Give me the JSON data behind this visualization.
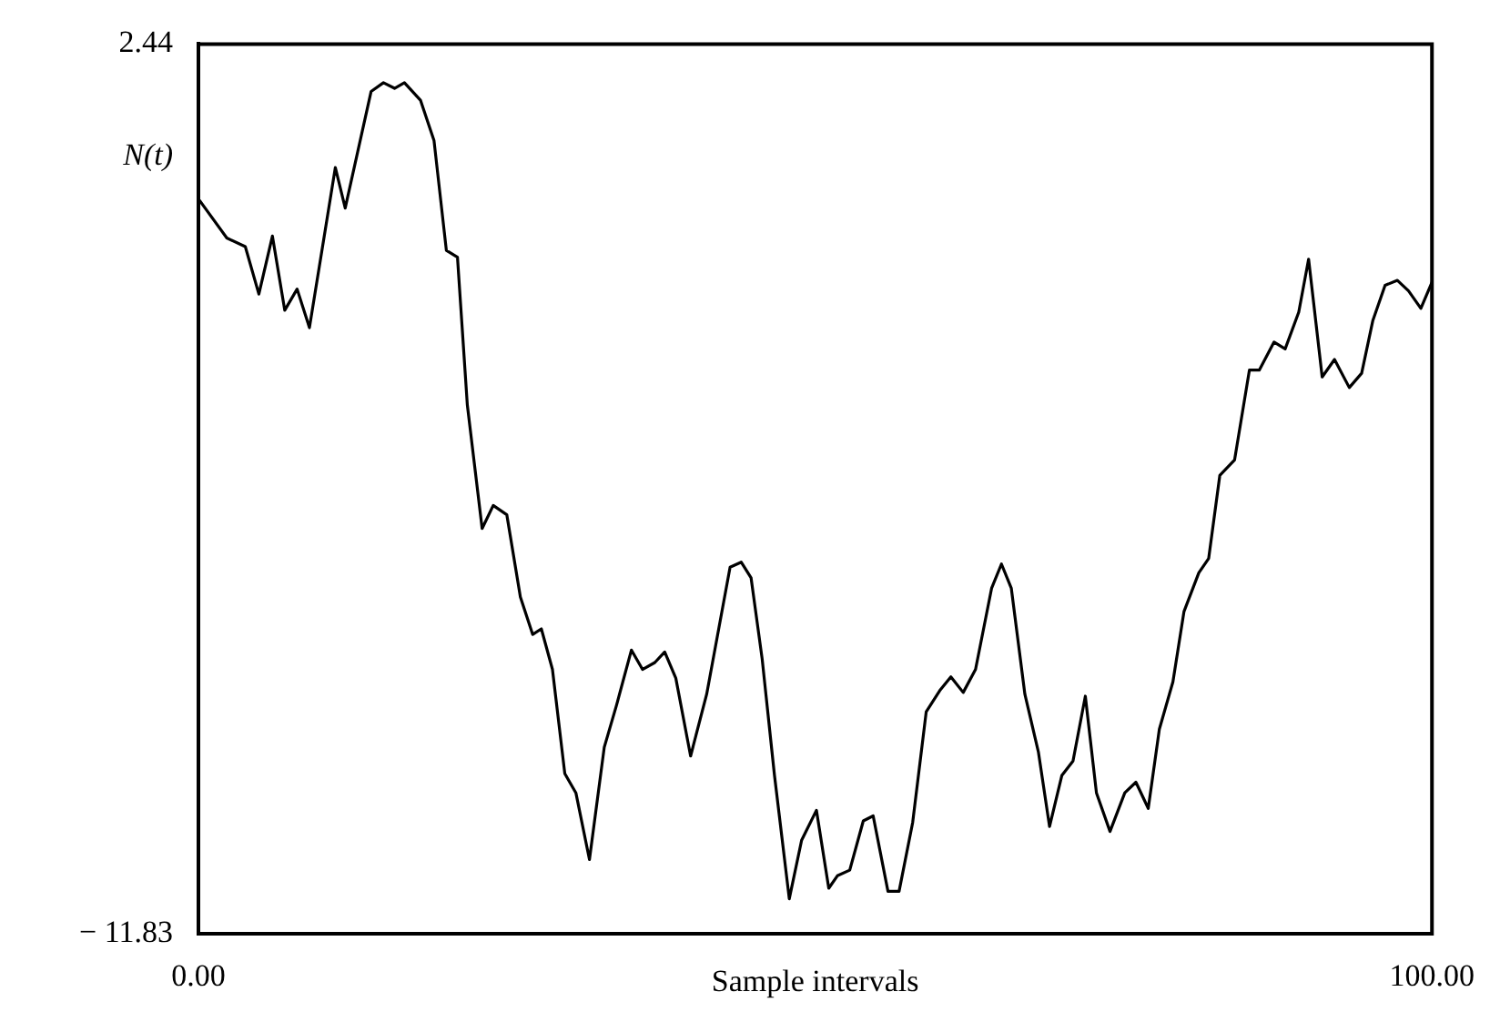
{
  "chart_data": {
    "type": "line",
    "xlabel": "Sample intervals",
    "ylabel": "N(t)",
    "legend": false,
    "marker": "none",
    "line_style": "solid",
    "xlim": [
      0,
      100
    ],
    "xticks": [
      {
        "value": 0,
        "label": "0.00"
      },
      {
        "value": 100,
        "label": "100.00"
      }
    ],
    "ylim": [
      -11.83,
      2.44
    ],
    "yticks": [
      {
        "value": -11.83,
        "label": "− 11.83"
      },
      2.44
    ],
    "series": [
      {
        "color": "#000000",
        "x": [
          0.1,
          2.3,
          3.8,
          4.9,
          6.0,
          7.0,
          8.0,
          9.0,
          11.1,
          11.9,
          14.0,
          15.0,
          15.9,
          16.7,
          18.0,
          19.1,
          20.1,
          21.0,
          21.8,
          23.0,
          23.9,
          25.0,
          26.1,
          27.1,
          27.8,
          28.7,
          29.7,
          30.6,
          31.7,
          32.9,
          33.9,
          35.1,
          36.0,
          37.0,
          37.8,
          38.7,
          39.9,
          41.2,
          43.1,
          44.0,
          44.8,
          45.7,
          46.7,
          47.9,
          48.9,
          50.1,
          51.1,
          51.8,
          52.8,
          53.9,
          54.7,
          55.9,
          56.8,
          57.9,
          59.0,
          60.1,
          61.0,
          62.0,
          63.0,
          64.3,
          65.1,
          65.9,
          67.0,
          68.1,
          69.0,
          70.0,
          70.9,
          71.9,
          72.8,
          73.9,
          75.1,
          76.0,
          77.0,
          77.9,
          79.0,
          79.9,
          81.1,
          81.9,
          82.8,
          84.0,
          85.2,
          86.0,
          87.2,
          88.1,
          89.2,
          90.0,
          91.1,
          92.1,
          93.3,
          94.3,
          95.2,
          96.2,
          97.2,
          98.1,
          99.1,
          100
        ],
        "values": [
          -0.07,
          -0.67,
          -0.81,
          -1.57,
          -0.64,
          -1.83,
          -1.49,
          -2.11,
          0.46,
          -0.19,
          1.68,
          1.82,
          1.73,
          1.82,
          1.54,
          0.89,
          -0.87,
          -0.98,
          -3.35,
          -5.33,
          -4.96,
          -5.11,
          -6.43,
          -7.03,
          -6.94,
          -7.59,
          -9.26,
          -9.57,
          -10.64,
          -8.84,
          -8.16,
          -7.28,
          -7.59,
          -7.48,
          -7.31,
          -7.73,
          -8.98,
          -7.99,
          -5.95,
          -5.87,
          -6.12,
          -7.42,
          -9.29,
          -11.27,
          -10.33,
          -9.85,
          -11.1,
          -10.9,
          -10.81,
          -10.02,
          -9.94,
          -11.15,
          -11.15,
          -10.05,
          -8.27,
          -7.93,
          -7.71,
          -7.96,
          -7.59,
          -6.29,
          -5.9,
          -6.29,
          -7.99,
          -8.92,
          -10.11,
          -9.29,
          -9.06,
          -8.02,
          -9.57,
          -10.19,
          -9.57,
          -9.4,
          -9.82,
          -8.55,
          -7.79,
          -6.66,
          -6.04,
          -5.81,
          -4.48,
          -4.23,
          -2.79,
          -2.79,
          -2.34,
          -2.45,
          -1.86,
          -1.01,
          -2.9,
          -2.62,
          -3.07,
          -2.84,
          -2.0,
          -1.43,
          -1.35,
          -1.52,
          -1.8,
          -1.38
        ]
      }
    ]
  }
}
